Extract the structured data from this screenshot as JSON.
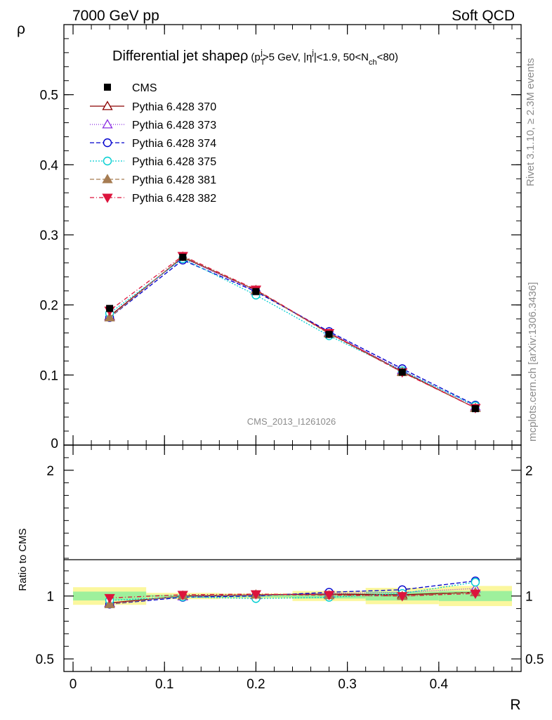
{
  "header": {
    "left": "7000 GeV pp",
    "right": "Soft QCD"
  },
  "title": {
    "main": "Differential jet shapeρ",
    "p": "(p",
    "sub_T": "T",
    "sup_j": "j",
    "cut1": ">5 GeV, |η",
    "sup_j2": "j",
    "cut2": "|<1.9, 50<N",
    "sub_ch": "ch",
    "cut3": "<80)"
  },
  "side": {
    "rivet": "Rivet 3.1.10, ≥ 2.3M events",
    "mcplots": "mcplots.cern.ch [arXiv:1306.3436]"
  },
  "watermark": "CMS_2013_I1261026",
  "chart_data": [
    {
      "type": "line",
      "panel": "main",
      "ylabel": "ρ",
      "xlim": [
        -0.01,
        0.49
      ],
      "ylim": [
        0,
        0.6
      ],
      "yticks": [
        {
          "v": 0,
          "label": "0"
        },
        {
          "v": 0.1,
          "label": "0.1"
        },
        {
          "v": 0.2,
          "label": "0.2"
        },
        {
          "v": 0.3,
          "label": "0.3"
        },
        {
          "v": 0.4,
          "label": "0.4"
        },
        {
          "v": 0.5,
          "label": "0.5"
        }
      ],
      "x": [
        0.04,
        0.12,
        0.2,
        0.28,
        0.36,
        0.44
      ],
      "data": {
        "name": "CMS",
        "values": [
          0.195,
          0.268,
          0.219,
          0.158,
          0.104,
          0.052
        ]
      },
      "series": [
        {
          "name": "Pythia 6.428 370",
          "color": "#8b0000",
          "dash": "",
          "marker": "triangle-open",
          "values": [
            0.184,
            0.268,
            0.221,
            0.16,
            0.105,
            0.053
          ]
        },
        {
          "name": "Pythia 6.428 373",
          "color": "#8a2be2",
          "dash": "1,2",
          "marker": "triangle-open",
          "values": [
            0.183,
            0.267,
            0.22,
            0.161,
            0.107,
            0.055
          ]
        },
        {
          "name": "Pythia 6.428 374",
          "color": "#0000cd",
          "dash": "6,3",
          "marker": "circle-open",
          "values": [
            0.182,
            0.264,
            0.219,
            0.162,
            0.109,
            0.057
          ]
        },
        {
          "name": "Pythia 6.428 375",
          "color": "#00ced1",
          "dash": "2,2",
          "marker": "circle-open",
          "values": [
            0.188,
            0.266,
            0.214,
            0.156,
            0.106,
            0.056
          ]
        },
        {
          "name": "Pythia 6.428 381",
          "color": "#a67c52",
          "dash": "6,3",
          "marker": "triangle-filled",
          "values": [
            0.182,
            0.269,
            0.221,
            0.159,
            0.104,
            0.053
          ]
        },
        {
          "name": "Pythia 6.428 382",
          "color": "#dc143c",
          "dash": "6,3,1,3",
          "marker": "triangle-down-filled",
          "values": [
            0.192,
            0.27,
            0.222,
            0.16,
            0.104,
            0.053
          ]
        }
      ]
    },
    {
      "type": "line",
      "panel": "ratio",
      "ylabel": "Ratio to CMS",
      "xlabel": "R",
      "xlim": [
        -0.01,
        0.49
      ],
      "ylim": [
        0.4,
        2.2
      ],
      "xticks": [
        {
          "v": 0,
          "label": "0"
        },
        {
          "v": 0.1,
          "label": "0.1"
        },
        {
          "v": 0.2,
          "label": "0.2"
        },
        {
          "v": 0.3,
          "label": "0.3"
        },
        {
          "v": 0.4,
          "label": "0.4"
        }
      ],
      "yticks": [
        {
          "v": 0.5,
          "label": "0.5"
        },
        {
          "v": 1,
          "label": "1"
        },
        {
          "v": 2,
          "label": "2"
        }
      ],
      "bins": [
        [
          0,
          0.08
        ],
        [
          0.08,
          0.16
        ],
        [
          0.16,
          0.24
        ],
        [
          0.24,
          0.32
        ],
        [
          0.32,
          0.4
        ],
        [
          0.4,
          0.48
        ]
      ],
      "band_yellow": [
        [
          0.93,
          1.07
        ],
        [
          0.975,
          1.025
        ],
        [
          0.98,
          1.02
        ],
        [
          0.96,
          1.04
        ],
        [
          0.935,
          1.065
        ],
        [
          0.92,
          1.08
        ]
      ],
      "band_green": [
        [
          0.965,
          1.035
        ],
        [
          0.99,
          1.01
        ],
        [
          0.99,
          1.01
        ],
        [
          0.98,
          1.02
        ],
        [
          0.965,
          1.035
        ],
        [
          0.96,
          1.04
        ]
      ],
      "x": [
        0.04,
        0.12,
        0.2,
        0.28,
        0.36,
        0.44
      ],
      "series": [
        {
          "name": "Pythia 6.428 370",
          "values": [
            0.945,
            1.0,
            1.01,
            1.015,
            1.01,
            1.03
          ]
        },
        {
          "name": "Pythia 6.428 373",
          "values": [
            0.94,
            0.997,
            1.005,
            1.02,
            1.03,
            1.06
          ]
        },
        {
          "name": "Pythia 6.428 374",
          "values": [
            0.935,
            0.99,
            1.0,
            1.03,
            1.05,
            1.12
          ]
        },
        {
          "name": "Pythia 6.428 375",
          "values": [
            0.965,
            0.993,
            0.98,
            0.99,
            1.02,
            1.11
          ]
        },
        {
          "name": "Pythia 6.428 381",
          "values": [
            0.935,
            1.003,
            1.01,
            1.005,
            1.0,
            1.03
          ]
        },
        {
          "name": "Pythia 6.428 382",
          "values": [
            0.985,
            1.01,
            1.015,
            1.01,
            1.0,
            1.02
          ]
        }
      ]
    }
  ]
}
